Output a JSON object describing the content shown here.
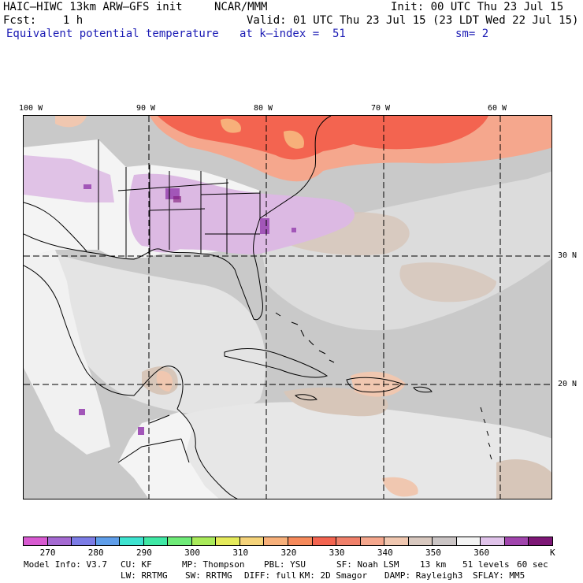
{
  "header": {
    "model_title": "HAIC–HIWC 13km ARW–GFS init",
    "org": "NCAR/MMM",
    "init": "Init: 00 UTC Thu 23 Jul 15",
    "fcst": "Fcst:    1 h",
    "valid": "Valid: 01 UTC Thu 23 Jul 15 (23 LDT Wed 22 Jul 15)",
    "field": "Equivalent potential temperature",
    "level": "at k–index =  51",
    "smoothing": "sm= 2"
  },
  "map": {
    "lon_labels": [
      "100 W",
      "90 W",
      "80 W",
      "70 W",
      "60 W"
    ],
    "lat_labels": [
      "30 N",
      "20 N"
    ],
    "colors": {
      "background": "#c9c9c9",
      "ocean_light": "#dcdcdc",
      "land_white": "#f4f4f4",
      "tan": "#d7c6b9",
      "lavender": "#dcb9e3",
      "purple": "#a256b8",
      "warm_salmon": "#f5a78d",
      "warm_red": "#f36450",
      "warm_orange": "#f7b07a"
    }
  },
  "colorbar": {
    "colors": [
      "#d85ad1",
      "#a56ad2",
      "#7c7ce6",
      "#5f9eea",
      "#3ee3d0",
      "#3fe8a5",
      "#6feb78",
      "#a9ea5a",
      "#e5ea5b",
      "#f5d37a",
      "#f7b07a",
      "#f68a5b",
      "#f36450",
      "#f0806a",
      "#f5a78d",
      "#f0c7b0",
      "#d8c8bf",
      "#cbc5c5",
      "#f4f4f4",
      "#e0c3ea",
      "#a145ad",
      "#7d1776"
    ],
    "ticks": [
      "270",
      "280",
      "290",
      "300",
      "310",
      "320",
      "330",
      "340",
      "350",
      "360"
    ],
    "unit": "K"
  },
  "footer": {
    "line1": [
      "Model Info: V3.7",
      "CU: KF",
      "MP: Thompson",
      "PBL: YSU",
      "SF: Noah LSM",
      "13 km",
      "51 levels",
      "60 sec"
    ],
    "line2": [
      "LW: RRTMG",
      "SW: RRTMG",
      "DIFF: full",
      "KM: 2D Smagor",
      "DAMP: Rayleigh3",
      "SFLAY: MM5"
    ]
  }
}
